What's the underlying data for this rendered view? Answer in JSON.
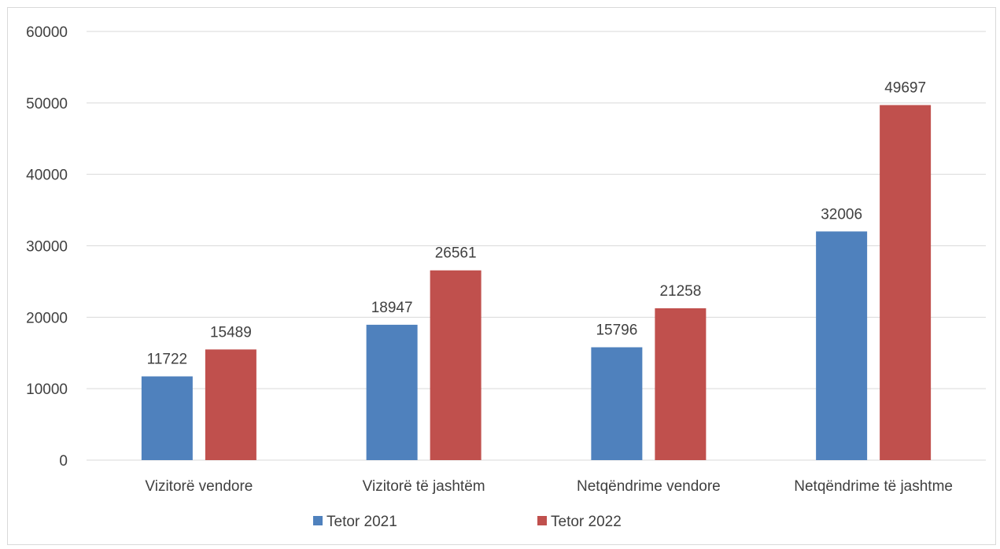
{
  "chart_data": {
    "type": "bar",
    "categories": [
      "Vizitorë vendore",
      "Vizitorë të jashtëm",
      "Netqëndrime vendore",
      "Netqëndrime të jashtme"
    ],
    "series": [
      {
        "name": "Tetor 2021",
        "color": "#4f81bd",
        "values": [
          11722,
          18947,
          15796,
          32006
        ]
      },
      {
        "name": "Tetor 2022",
        "color": "#c0504d",
        "values": [
          15489,
          26561,
          21258,
          49697
        ]
      }
    ],
    "ylim": [
      0,
      60000
    ],
    "yticks": [
      0,
      10000,
      20000,
      30000,
      40000,
      50000,
      60000
    ],
    "grid": true,
    "legend_position": "bottom",
    "data_labels": true
  }
}
